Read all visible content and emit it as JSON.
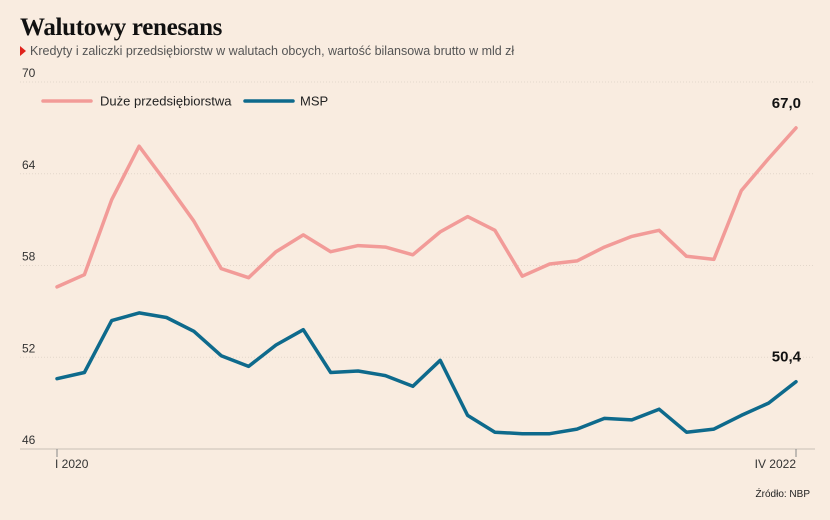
{
  "header": {
    "title": "Walutowy renesans",
    "subtitle": "Kredyty i zaliczki przedsiębiorstw w walutach obcych, wartość bilansowa brutto w mld zł"
  },
  "footer": {
    "source": "Źródło: NBP"
  },
  "chart_data": {
    "type": "line",
    "title": "Walutowy renesans",
    "subtitle": "Kredyty i zaliczki przedsiębiorstw w walutach obcych, wartość bilansowa brutto w mld zł",
    "xlabel": "",
    "ylabel": "",
    "ylim": [
      46,
      70
    ],
    "yticks": [
      46,
      52,
      58,
      64,
      70
    ],
    "x_tick_labels": [
      "I 2020",
      "IV 2022"
    ],
    "grid": "horizontal",
    "legend": "top-left",
    "colors": {
      "large": "#f29b98",
      "sme": "#0e6a8c"
    },
    "series": [
      {
        "name": "Duże przedsiębiorstwa",
        "values": [
          56.6,
          57.4,
          62.3,
          65.8,
          63.4,
          60.9,
          57.8,
          57.2,
          58.9,
          60.0,
          58.9,
          59.3,
          59.2,
          58.7,
          60.2,
          61.2,
          60.3,
          57.3,
          58.1,
          58.3,
          59.2,
          59.9,
          60.3,
          58.6,
          58.4,
          62.9,
          65.0,
          67.0
        ],
        "end_label": "67,0"
      },
      {
        "name": "MSP",
        "values": [
          50.6,
          51.0,
          54.4,
          54.9,
          54.6,
          53.7,
          52.1,
          51.4,
          52.8,
          53.8,
          51.0,
          51.1,
          50.8,
          50.1,
          51.8,
          48.2,
          47.1,
          47.0,
          47.0,
          47.3,
          48.0,
          47.9,
          48.6,
          47.1,
          47.3,
          48.2,
          49.0,
          50.4
        ],
        "end_label": "50,4"
      }
    ]
  }
}
